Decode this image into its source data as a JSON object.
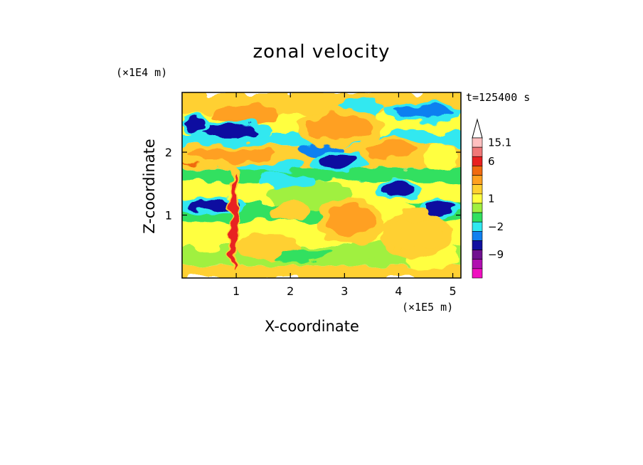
{
  "chart_data": {
    "type": "heatmap",
    "title": "zonal velocity",
    "xlabel": "X-coordinate",
    "ylabel": "Z-coordinate",
    "x_scale_label": "(×1E5 m)",
    "y_scale_label": "(×1E4 m)",
    "time_label": "t=125400 s",
    "xlim": [
      0,
      5.15
    ],
    "ylim": [
      0,
      2.95
    ],
    "x_ticks": [
      1,
      2,
      3,
      4,
      5
    ],
    "y_ticks": [
      1,
      2
    ],
    "x_tick_labels": [
      "1",
      "2",
      "3",
      "4",
      "5"
    ],
    "y_tick_labels": [
      "1",
      "2"
    ],
    "colorbar": {
      "levels": [
        "15.1",
        "6",
        "1",
        "−2",
        "−9"
      ],
      "bands": [
        {
          "color": "#ffc0c0",
          "value": 15.1
        },
        {
          "color": "#f07878",
          "value": 12
        },
        {
          "color": "#e82020",
          "value": 6
        },
        {
          "color": "#f06a10",
          "value": 4
        },
        {
          "color": "#ffa020",
          "value": 2
        },
        {
          "color": "#ffd030",
          "value": 1.5
        },
        {
          "color": "#ffff40",
          "value": 1
        },
        {
          "color": "#a0f040",
          "value": 0
        },
        {
          "color": "#30e060",
          "value": -1
        },
        {
          "color": "#30e8f0",
          "value": -2
        },
        {
          "color": "#1080f0",
          "value": -4
        },
        {
          "color": "#1010a0",
          "value": -6
        },
        {
          "color": "#701090",
          "value": -9
        },
        {
          "color": "#b010b0",
          "value": -12
        },
        {
          "color": "#f010c0",
          "value": -15
        }
      ]
    },
    "features": [
      {
        "kind": "negative",
        "x": 0.9,
        "z": 2.35,
        "rx": 0.55,
        "rz": 0.1,
        "value": -6
      },
      {
        "kind": "negative",
        "x": 0.25,
        "z": 2.45,
        "rx": 0.22,
        "rz": 0.09,
        "value": -6
      },
      {
        "kind": "negative",
        "x": 2.9,
        "z": 1.85,
        "rx": 0.4,
        "rz": 0.1,
        "value": -6
      },
      {
        "kind": "negative",
        "x": 3.95,
        "z": 1.4,
        "rx": 0.3,
        "rz": 0.1,
        "value": -6
      },
      {
        "kind": "negative",
        "x": 0.55,
        "z": 1.15,
        "rx": 0.5,
        "rz": 0.09,
        "value": -6
      },
      {
        "kind": "negative",
        "x": 4.75,
        "z": 1.1,
        "rx": 0.3,
        "rz": 0.1,
        "value": -6
      },
      {
        "kind": "negative",
        "x": 4.45,
        "z": 2.65,
        "rx": 0.55,
        "rz": 0.1,
        "value": -4
      },
      {
        "kind": "negative",
        "x": 1.55,
        "z": 1.8,
        "rx": 0.5,
        "rz": 0.09,
        "value": -2
      },
      {
        "kind": "positive",
        "x": 0.95,
        "z": 0.9,
        "rx": 0.06,
        "rz": 0.75,
        "value": 6
      },
      {
        "kind": "positive",
        "x": 0.9,
        "z": 1.95,
        "rx": 0.8,
        "rz": 0.12,
        "value": 2
      },
      {
        "kind": "positive",
        "x": 2.9,
        "z": 2.4,
        "rx": 0.6,
        "rz": 0.2,
        "value": 2
      },
      {
        "kind": "positive",
        "x": 3.1,
        "z": 0.9,
        "rx": 0.45,
        "rz": 0.25,
        "value": 2
      },
      {
        "kind": "positive",
        "x": 3.85,
        "z": 2.05,
        "rx": 0.45,
        "rz": 0.15,
        "value": 2
      },
      {
        "kind": "positive",
        "x": 4.3,
        "z": 0.7,
        "rx": 0.5,
        "rz": 0.25,
        "value": 1.5
      }
    ]
  }
}
